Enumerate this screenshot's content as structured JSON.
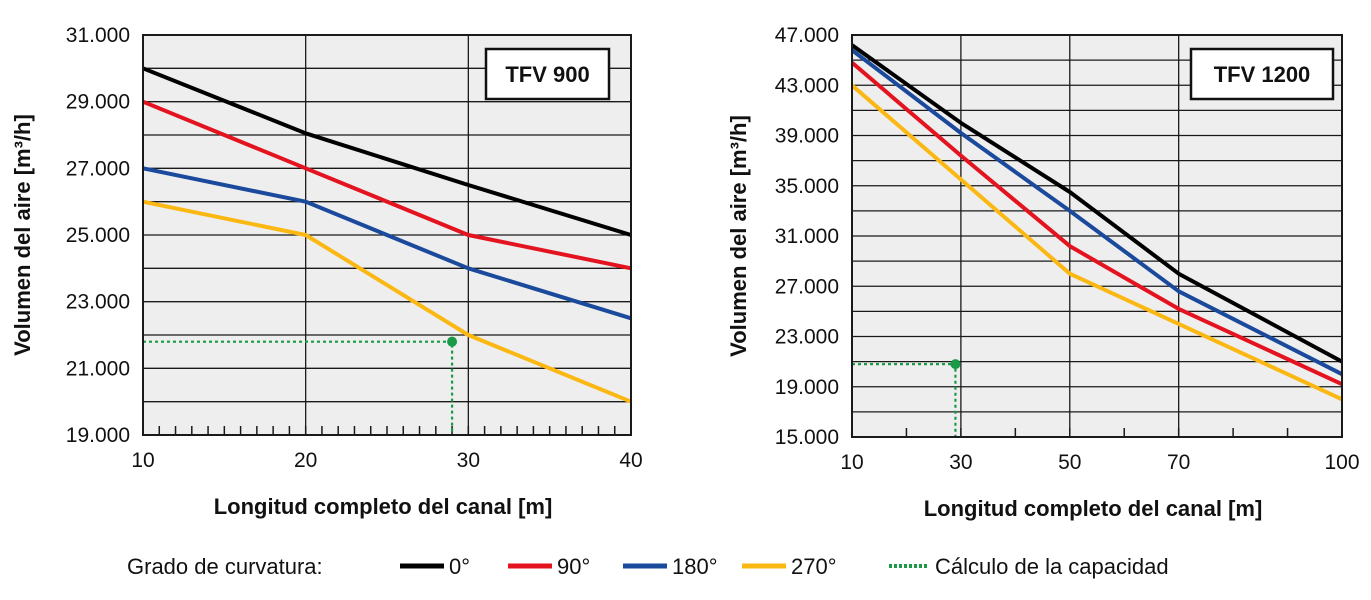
{
  "colors": {
    "0": "#000000",
    "90": "#e3141f",
    "180": "#1b4a9c",
    "270": "#fbb813",
    "capacity": "#1a9a46",
    "plot_bg": "#eeeeee",
    "grid": "#1a1a1a"
  },
  "legend": {
    "title": "Grado de curvatura:",
    "items": [
      {
        "key": "0",
        "label": "0°",
        "style": "solid"
      },
      {
        "key": "90",
        "label": "90°",
        "style": "solid"
      },
      {
        "key": "180",
        "label": "180°",
        "style": "solid"
      },
      {
        "key": "270",
        "label": "270°",
        "style": "solid"
      },
      {
        "key": "capacity",
        "label": "Cálculo de la capacidad",
        "style": "dotted"
      }
    ]
  },
  "chart_data": [
    {
      "type": "line",
      "model_label": "TFV 900",
      "xlabel": "Longitud completo del canal [m]",
      "ylabel": "Volumen del aire [m³/h]",
      "xlim": [
        10,
        40
      ],
      "ylim": [
        19000,
        31000
      ],
      "x_ticks": [
        10,
        20,
        30,
        40
      ],
      "x_minor_step": 1,
      "y_ticks": [
        19000,
        21000,
        23000,
        25000,
        27000,
        29000,
        31000
      ],
      "y_tick_labels": [
        "19.000",
        "21.000",
        "23.000",
        "25.000",
        "27.000",
        "29.000",
        "31.000"
      ],
      "grid": {
        "y_step": 1000,
        "x_major": [
          20,
          30
        ]
      },
      "legend_position": "bottom",
      "series": [
        {
          "key": "0",
          "x": [
            10,
            20,
            30,
            40
          ],
          "y": [
            30000,
            28050,
            26500,
            25000
          ]
        },
        {
          "key": "90",
          "x": [
            10,
            20,
            30,
            40
          ],
          "y": [
            29000,
            27000,
            25000,
            24000
          ]
        },
        {
          "key": "180",
          "x": [
            10,
            20,
            30,
            40
          ],
          "y": [
            27000,
            26000,
            24000,
            22500
          ]
        },
        {
          "key": "270",
          "x": [
            10,
            20,
            30,
            40
          ],
          "y": [
            26000,
            25000,
            22000,
            20000
          ]
        }
      ],
      "capacity_point": {
        "x": 29,
        "y": 21800
      }
    },
    {
      "type": "line",
      "model_label": "TFV 1200",
      "xlabel": "Longitud completo del canal [m]",
      "ylabel": "Volumen del aire [m³/h]",
      "xlim": [
        10,
        100
      ],
      "ylim": [
        15000,
        47000
      ],
      "x_ticks": [
        10,
        30,
        50,
        70,
        100
      ],
      "x_minor_step": 10,
      "y_ticks": [
        15000,
        19000,
        23000,
        27000,
        31000,
        35000,
        39000,
        43000,
        47000
      ],
      "y_tick_labels": [
        "15.000",
        "19.000",
        "23.000",
        "27.000",
        "31.000",
        "35.000",
        "39.000",
        "43.000",
        "47.000"
      ],
      "grid": {
        "y_step": 2000,
        "x_major": [
          30,
          50,
          70
        ]
      },
      "legend_position": "bottom",
      "series": [
        {
          "key": "0",
          "x": [
            10,
            30,
            50,
            70,
            100
          ],
          "y": [
            46200,
            40000,
            34500,
            28000,
            21000
          ]
        },
        {
          "key": "90",
          "x": [
            10,
            30,
            50,
            70,
            100
          ],
          "y": [
            44800,
            37400,
            30200,
            25200,
            19200
          ]
        },
        {
          "key": "180",
          "x": [
            10,
            30,
            50,
            70,
            100
          ],
          "y": [
            45800,
            39200,
            33000,
            26600,
            20000
          ]
        },
        {
          "key": "270",
          "x": [
            10,
            30,
            50,
            70,
            100
          ],
          "y": [
            43000,
            35500,
            28000,
            24000,
            18000
          ]
        }
      ],
      "capacity_point": {
        "x": 29,
        "y": 20800
      }
    }
  ]
}
